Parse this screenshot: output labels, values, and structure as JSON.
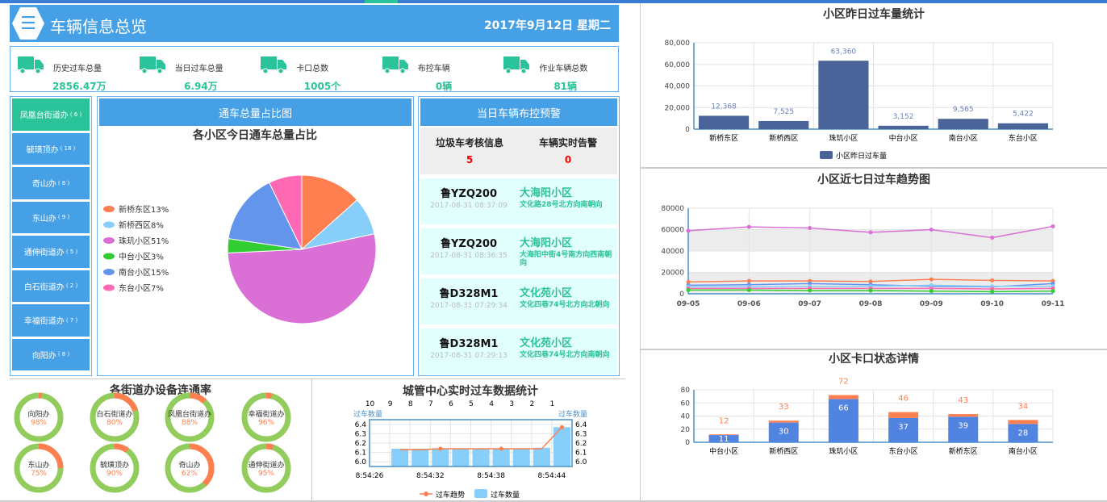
{
  "header": {
    "title": "车辆信息总览",
    "date": "2017年9月12日  星期二",
    "logo_icon": "list-icon"
  },
  "stats": [
    {
      "label": "历史过车总量",
      "value": "2856.47万"
    },
    {
      "label": "当日过车总量",
      "value": "6.94万"
    },
    {
      "label": "卡口总数",
      "value": "1005个"
    },
    {
      "label": "布控车辆",
      "value": "0辆"
    },
    {
      "label": "作业车辆总数",
      "value": "81辆"
    }
  ],
  "sidebar": {
    "items": [
      {
        "label": "凤凰台街道办",
        "count": "( 6 )",
        "active": true
      },
      {
        "label": "毓璜顶办",
        "count": "( 18 )"
      },
      {
        "label": "奇山办",
        "count": "( 8 )"
      },
      {
        "label": "东山办",
        "count": "( 9 )"
      },
      {
        "label": "通伸街道办",
        "count": "( 5 )"
      },
      {
        "label": "白石街道办",
        "count": "( 2 )"
      },
      {
        "label": "幸福街道办",
        "count": "( 7 )"
      },
      {
        "label": "向阳办",
        "count": "( 8 )"
      }
    ]
  },
  "pie_panel": {
    "header": "通车总量占比图"
  },
  "warn_panel": {
    "header": "当日车辆布控预警",
    "summary": [
      {
        "label": "垃圾车考核信息",
        "value": "5"
      },
      {
        "label": "车辆实时告警",
        "value": "0"
      }
    ],
    "items": [
      {
        "plate": "鲁YZQ200",
        "time": "2017-08-31 08:37:09",
        "place": "大海阳小区",
        "addr": "文化路28号北方向南朝向"
      },
      {
        "plate": "鲁YZQ200",
        "time": "2017-08-31 08:36:35",
        "place": "大海阳小区",
        "addr": "大海阳中街4号南方向西南朝向"
      },
      {
        "plate": "鲁D328M1",
        "time": "2017-08-31 07:29:34",
        "place": "文化苑小区",
        "addr": "文化四巷74号北方向北朝向"
      },
      {
        "plate": "鲁D328M1",
        "time": "2017-08-31 07:29:13",
        "place": "文化苑小区",
        "addr": "文化四巷74号北方向南朝向"
      }
    ]
  },
  "colors": {
    "primary": "#45a0e6",
    "accent": "#2bc39a",
    "alert": "#ff0000",
    "ok": "#91cc5c",
    "bad": "#ff7f50"
  },
  "chart_data": [
    {
      "id": "pie",
      "type": "pie",
      "title": "各小区今日通车总量占比",
      "legend": "left",
      "categories": [
        "新桥东区",
        "新桥西区",
        "珠玑小区",
        "中台小区",
        "南台小区",
        "东台小区"
      ],
      "values": [
        13,
        8,
        51,
        3,
        15,
        7
      ],
      "labels": [
        "新桥东区13%",
        "新桥西区8%",
        "珠玑小区51%",
        "中台小区3%",
        "南台小区15%",
        "东台小区7%"
      ],
      "colors": [
        "#ff7f50",
        "#87cefa",
        "#da70d6",
        "#32cd32",
        "#6495ed",
        "#ff69b4"
      ]
    },
    {
      "id": "donuts",
      "type": "pie",
      "title": "各街道办设备连通率",
      "categories": [
        "向阳办",
        "白石街道办",
        "凤凰台街道办",
        "幸福街道办",
        "东山办",
        "毓璜顶办",
        "奇山办",
        "通伸街道办"
      ],
      "values": [
        98,
        80,
        88,
        96,
        75,
        90,
        62,
        95
      ],
      "labels": [
        "98%",
        "80%",
        "88%",
        "96%",
        "75%",
        "90%",
        "62%",
        "95%"
      ]
    },
    {
      "id": "realtime",
      "type": "bar",
      "title": "城管中心实时过车数据统计",
      "ylabel_left": "过车数量",
      "ylabel_right": "过车数量",
      "top_ticks": [
        "10",
        "9",
        "8",
        "7",
        "6",
        "5",
        "4",
        "3",
        "2",
        "1"
      ],
      "x_ticks": [
        "8:54:26",
        "8:54:32",
        "8:54:38",
        "8:54:44"
      ],
      "y_ticks": [
        "6.0",
        "6.1",
        "6.2",
        "6.3",
        "6.4"
      ],
      "ylim": [
        5.95,
        6.45
      ],
      "series": [
        {
          "name": "过车趋势",
          "type": "line",
          "values": [
            null,
            6.13,
            6.13,
            6.14,
            6.14,
            6.14,
            6.14,
            6.14,
            6.14,
            6.37
          ]
        },
        {
          "name": "过车数量",
          "type": "bar",
          "values": [
            null,
            6.14,
            6.14,
            6.14,
            6.14,
            6.14,
            6.14,
            6.14,
            6.15,
            6.37
          ]
        }
      ],
      "legend": "bottom"
    },
    {
      "id": "yesterday",
      "type": "bar",
      "title": "小区昨日过车量统计",
      "categories": [
        "新桥东区",
        "新桥西区",
        "珠玑小区",
        "中台小区",
        "南台小区",
        "东台小区"
      ],
      "values": [
        12368,
        7525,
        63360,
        3152,
        9565,
        5422
      ],
      "value_labels": [
        "12,368",
        "7,525",
        "63,360",
        "3,152",
        "9,565",
        "5,422"
      ],
      "y_ticks": [
        "0",
        "20,000",
        "40,000",
        "60,000",
        "80,000"
      ],
      "ylim": [
        0,
        80000
      ],
      "series_name": "小区昨日过车量",
      "legend": "bottom",
      "grid": true
    },
    {
      "id": "trend",
      "type": "line",
      "title": "小区近七日过车趋势图",
      "x": [
        "09-05",
        "09-06",
        "09-07",
        "09-08",
        "09-09",
        "09-10",
        "09-11"
      ],
      "y_ticks": [
        "0",
        "20000",
        "40000",
        "60000",
        "80000"
      ],
      "ylim": [
        0,
        80000
      ],
      "series": [
        {
          "values": [
            59000,
            62500,
            61500,
            57500,
            60000,
            52500,
            63000
          ],
          "color": "#da70d6"
        },
        {
          "values": [
            11000,
            12000,
            12000,
            11500,
            13500,
            12500,
            12000
          ],
          "color": "#ff7f50"
        },
        {
          "values": [
            8000,
            8500,
            9500,
            8500,
            7000,
            6500,
            9500
          ],
          "color": "#6495ed"
        },
        {
          "values": [
            6500,
            6500,
            7000,
            7000,
            8000,
            7000,
            7000
          ],
          "color": "#87cefa"
        },
        {
          "values": [
            5000,
            5000,
            5000,
            5000,
            5000,
            4500,
            5000
          ],
          "color": "#ff69b4"
        },
        {
          "values": [
            3500,
            3500,
            3000,
            3000,
            2500,
            2000,
            2500
          ],
          "color": "#32cd32"
        }
      ],
      "grid": true
    },
    {
      "id": "status",
      "type": "bar",
      "stacked": true,
      "title": "小区卡口状态详情",
      "categories": [
        "中台小区",
        "新桥西区",
        "珠玑小区",
        "东台小区",
        "新桥东区",
        "南台小区"
      ],
      "series": [
        {
          "values": [
            11,
            30,
            66,
            37,
            39,
            28
          ],
          "color": "#5183e0"
        },
        {
          "values": [
            1,
            3,
            6,
            9,
            4,
            6
          ],
          "color": "#ff7f50"
        }
      ],
      "totals": [
        12,
        33,
        72,
        46,
        43,
        34
      ],
      "y_ticks": [
        "0",
        "20",
        "40",
        "60",
        "80"
      ],
      "ylim": [
        0,
        80
      ],
      "grid": true
    }
  ]
}
